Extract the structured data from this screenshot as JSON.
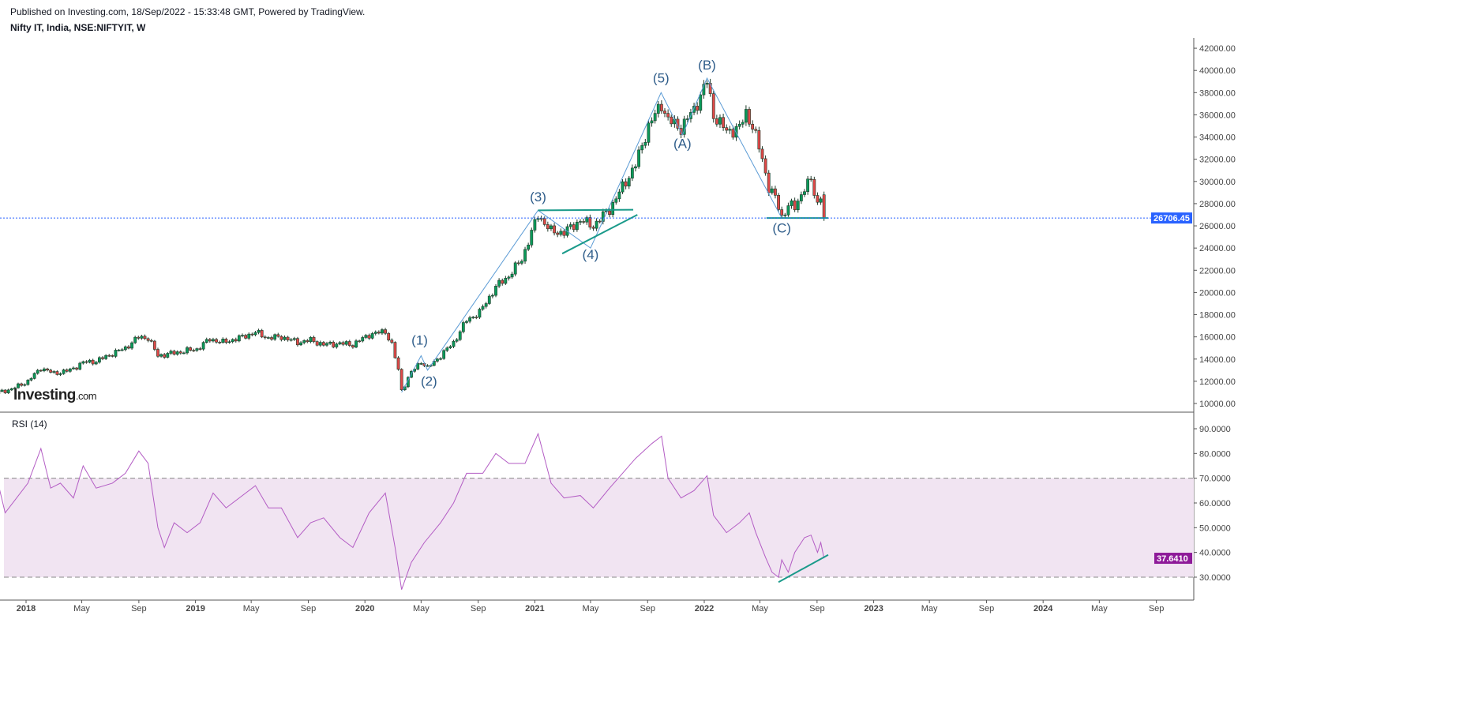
{
  "header": {
    "published": "Published on Investing.com, 18/Sep/2022 - 15:33:48 GMT, Powered by TradingView.",
    "symbol": "Nifty IT, India, NSE:NIFTYIT, W"
  },
  "logo": {
    "main": "Investing",
    "suffix": ".com"
  },
  "colors": {
    "up": "#0b9a5a",
    "down": "#e04848",
    "wick": "#1f3b2a",
    "wave": "#5b9bd5",
    "trend": "#1a9a8a",
    "last_price": "#2962ff",
    "rsi": "#b35cc4",
    "rsi_band": "#f1e4f2",
    "rsi_badge": "#8e1a99",
    "label": "#2f5d8a"
  },
  "chart_data": [
    {
      "type": "candlestick",
      "title": "Nifty IT, India, NSE:NIFTYIT, W",
      "ylim": [
        10000,
        42000
      ],
      "yticks": [
        "10000.00",
        "12000.00",
        "14000.00",
        "16000.00",
        "18000.00",
        "20000.00",
        "22000.00",
        "24000.00",
        "26000.00",
        "28000.00",
        "30000.00",
        "32000.00",
        "34000.00",
        "36000.00",
        "38000.00",
        "40000.00",
        "42000.00"
      ],
      "xticks": [
        [
          "2018-01-01",
          "2018"
        ],
        [
          "2018-05-01",
          "May"
        ],
        [
          "2018-09-01",
          "Sep"
        ],
        [
          "2019-01-01",
          "2019"
        ],
        [
          "2019-05-01",
          "May"
        ],
        [
          "2019-09-01",
          "Sep"
        ],
        [
          "2020-01-01",
          "2020"
        ],
        [
          "2020-05-01",
          "May"
        ],
        [
          "2020-09-01",
          "Sep"
        ],
        [
          "2021-01-01",
          "2021"
        ],
        [
          "2021-05-01",
          "May"
        ],
        [
          "2021-09-01",
          "Sep"
        ],
        [
          "2022-01-01",
          "2022"
        ],
        [
          "2022-05-01",
          "May"
        ],
        [
          "2022-09-01",
          "Sep"
        ],
        [
          "2023-01-01",
          "2023"
        ],
        [
          "2023-05-01",
          "May"
        ],
        [
          "2023-09-01",
          "Sep"
        ],
        [
          "2024-01-01",
          "2024"
        ],
        [
          "2024-05-01",
          "May"
        ],
        [
          "2024-09-01",
          "Sep"
        ]
      ],
      "last_price": 26706.45,
      "last_price_label": "26706.45",
      "close_anchors": [
        [
          "2017-11-03",
          11000
        ],
        [
          "2017-12-01",
          11300
        ],
        [
          "2018-01-05",
          12000
        ],
        [
          "2018-02-02",
          13200
        ],
        [
          "2018-03-02",
          12700
        ],
        [
          "2018-04-06",
          13000
        ],
        [
          "2018-05-04",
          13700
        ],
        [
          "2018-06-01",
          13800
        ],
        [
          "2018-07-06",
          14500
        ],
        [
          "2018-08-03",
          15000
        ],
        [
          "2018-09-01",
          16000
        ],
        [
          "2018-09-21",
          15900
        ],
        [
          "2018-10-12",
          14300
        ],
        [
          "2018-11-09",
          14500
        ],
        [
          "2018-12-07",
          14700
        ],
        [
          "2019-01-04",
          14900
        ],
        [
          "2019-02-01",
          15800
        ],
        [
          "2019-03-01",
          15500
        ],
        [
          "2019-04-05",
          15900
        ],
        [
          "2019-05-10",
          16400
        ],
        [
          "2019-06-07",
          15900
        ],
        [
          "2019-07-05",
          16000
        ],
        [
          "2019-08-09",
          15500
        ],
        [
          "2019-09-06",
          15700
        ],
        [
          "2019-10-04",
          15300
        ],
        [
          "2019-11-08",
          15400
        ],
        [
          "2019-12-06",
          15300
        ],
        [
          "2020-01-10",
          16200
        ],
        [
          "2020-02-14",
          16500
        ],
        [
          "2020-02-28",
          15300
        ],
        [
          "2020-03-13",
          13000
        ],
        [
          "2020-03-20",
          11200
        ],
        [
          "2020-04-10",
          12800
        ],
        [
          "2020-05-01",
          13800
        ],
        [
          "2020-05-15",
          13200
        ],
        [
          "2020-06-12",
          14300
        ],
        [
          "2020-07-10",
          15500
        ],
        [
          "2020-08-07",
          17500
        ],
        [
          "2020-09-04",
          18200
        ],
        [
          "2020-10-09",
          20500
        ],
        [
          "2020-11-06",
          21500
        ],
        [
          "2020-12-04",
          23000
        ],
        [
          "2021-01-08",
          27000
        ],
        [
          "2021-02-05",
          25500
        ],
        [
          "2021-03-05",
          25400
        ],
        [
          "2021-04-09",
          26500
        ],
        [
          "2021-05-07",
          26000
        ],
        [
          "2021-06-11",
          27500
        ],
        [
          "2021-07-09",
          29500
        ],
        [
          "2021-08-06",
          31500
        ],
        [
          "2021-09-03",
          35000
        ],
        [
          "2021-10-01",
          37000
        ],
        [
          "2021-10-15",
          35500
        ],
        [
          "2021-11-12",
          34800
        ],
        [
          "2021-12-10",
          36500
        ],
        [
          "2022-01-07",
          39000
        ],
        [
          "2022-01-21",
          36000
        ],
        [
          "2022-02-18",
          34500
        ],
        [
          "2022-03-18",
          34800
        ],
        [
          "2022-04-01",
          36200
        ],
        [
          "2022-04-15",
          35000
        ],
        [
          "2022-05-06",
          32000
        ],
        [
          "2022-05-20",
          29500
        ],
        [
          "2022-06-03",
          28500
        ],
        [
          "2022-06-17",
          26800
        ],
        [
          "2022-07-01",
          27900
        ],
        [
          "2022-07-15",
          27600
        ],
        [
          "2022-08-05",
          29500
        ],
        [
          "2022-08-19",
          30000
        ],
        [
          "2022-09-02",
          28000
        ],
        [
          "2022-09-09",
          28800
        ],
        [
          "2022-09-16",
          26706.45
        ]
      ],
      "elliott_wave_path": [
        [
          "2020-03-20",
          11000
        ],
        [
          "2020-05-01",
          14300
        ],
        [
          "2020-05-15",
          13000
        ],
        [
          "2021-01-08",
          27400
        ],
        [
          "2021-05-01",
          24000
        ],
        [
          "2021-09-30",
          38000
        ],
        [
          "2021-11-15",
          34200
        ],
        [
          "2022-01-07",
          39300
        ],
        [
          "2022-06-17",
          26700
        ]
      ],
      "wave_labels": [
        {
          "text": "(1)",
          "date": "2020-04-28",
          "price": 15300
        },
        {
          "text": "(2)",
          "date": "2020-05-18",
          "price": 11600
        },
        {
          "text": "(3)",
          "date": "2021-01-08",
          "price": 28200
        },
        {
          "text": "(4)",
          "date": "2021-05-01",
          "price": 23000
        },
        {
          "text": "(5)",
          "date": "2021-09-30",
          "price": 38900
        },
        {
          "text": "(A)",
          "date": "2021-11-15",
          "price": 33000
        },
        {
          "text": "(B)",
          "date": "2022-01-07",
          "price": 40100
        },
        {
          "text": "(C)",
          "date": "2022-06-17",
          "price": 25400
        }
      ],
      "trend_lines": [
        [
          [
            "2021-01-08",
            27400
          ],
          [
            "2021-08-01",
            27450
          ]
        ],
        [
          [
            "2021-03-01",
            23500
          ],
          [
            "2021-08-10",
            27000
          ]
        ],
        [
          [
            "2022-05-15",
            26706
          ],
          [
            "2022-09-25",
            26706
          ]
        ]
      ]
    },
    {
      "type": "line",
      "title": "RSI (14)",
      "ylim": [
        23,
        96
      ],
      "yticks": [
        "30.0000",
        "40.0000",
        "50.0000",
        "60.0000",
        "70.0000",
        "80.0000",
        "90.0000"
      ],
      "bands": [
        30,
        70
      ],
      "last_value": 37.641,
      "last_value_label": "37.6410",
      "points": [
        [
          "2017-11-03",
          67
        ],
        [
          "2017-11-17",
          56
        ],
        [
          "2018-01-05",
          68
        ],
        [
          "2018-02-02",
          82
        ],
        [
          "2018-02-23",
          66
        ],
        [
          "2018-03-16",
          68
        ],
        [
          "2018-04-13",
          62
        ],
        [
          "2018-05-04",
          75
        ],
        [
          "2018-06-01",
          66
        ],
        [
          "2018-07-06",
          68
        ],
        [
          "2018-08-03",
          72
        ],
        [
          "2018-09-01",
          81
        ],
        [
          "2018-09-21",
          76
        ],
        [
          "2018-10-12",
          50
        ],
        [
          "2018-10-26",
          42
        ],
        [
          "2018-11-16",
          52
        ],
        [
          "2018-12-14",
          48
        ],
        [
          "2019-01-11",
          52
        ],
        [
          "2019-02-08",
          64
        ],
        [
          "2019-03-08",
          58
        ],
        [
          "2019-04-05",
          62
        ],
        [
          "2019-05-10",
          67
        ],
        [
          "2019-06-07",
          58
        ],
        [
          "2019-07-05",
          58
        ],
        [
          "2019-08-09",
          46
        ],
        [
          "2019-09-06",
          52
        ],
        [
          "2019-10-04",
          54
        ],
        [
          "2019-11-08",
          46
        ],
        [
          "2019-12-06",
          42
        ],
        [
          "2020-01-10",
          56
        ],
        [
          "2020-02-14",
          64
        ],
        [
          "2020-03-06",
          42
        ],
        [
          "2020-03-20",
          25
        ],
        [
          "2020-04-10",
          36
        ],
        [
          "2020-05-08",
          44
        ],
        [
          "2020-06-12",
          52
        ],
        [
          "2020-07-10",
          60
        ],
        [
          "2020-08-07",
          72
        ],
        [
          "2020-09-11",
          72
        ],
        [
          "2020-10-09",
          80
        ],
        [
          "2020-11-06",
          76
        ],
        [
          "2020-12-11",
          76
        ],
        [
          "2021-01-08",
          88
        ],
        [
          "2021-02-05",
          68
        ],
        [
          "2021-03-05",
          62
        ],
        [
          "2021-04-09",
          63
        ],
        [
          "2021-05-07",
          58
        ],
        [
          "2021-06-11",
          66
        ],
        [
          "2021-07-09",
          72
        ],
        [
          "2021-08-06",
          78
        ],
        [
          "2021-09-10",
          84
        ],
        [
          "2021-10-01",
          87
        ],
        [
          "2021-10-15",
          70
        ],
        [
          "2021-11-12",
          62
        ],
        [
          "2021-12-10",
          65
        ],
        [
          "2022-01-07",
          71
        ],
        [
          "2022-01-21",
          55
        ],
        [
          "2022-02-18",
          48
        ],
        [
          "2022-03-18",
          52
        ],
        [
          "2022-04-08",
          56
        ],
        [
          "2022-04-22",
          48
        ],
        [
          "2022-05-13",
          38
        ],
        [
          "2022-05-27",
          32
        ],
        [
          "2022-06-10",
          30
        ],
        [
          "2022-06-17",
          37
        ],
        [
          "2022-07-01",
          32
        ],
        [
          "2022-07-15",
          40
        ],
        [
          "2022-08-05",
          46
        ],
        [
          "2022-08-19",
          47
        ],
        [
          "2022-09-02",
          40
        ],
        [
          "2022-09-09",
          44
        ],
        [
          "2022-09-16",
          37.641
        ]
      ],
      "trend_line": [
        [
          "2022-06-10",
          28
        ],
        [
          "2022-09-25",
          39
        ]
      ]
    }
  ]
}
